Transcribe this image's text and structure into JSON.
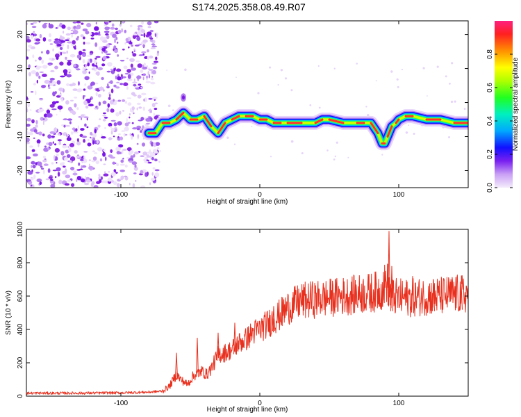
{
  "chart_data": [
    {
      "type": "heatmap",
      "title": "S174.2025.358.08.49.R07",
      "xlabel": "Height of straight line (km)",
      "ylabel": "Frequency (Hz)",
      "xlim": [
        -168,
        150
      ],
      "ylim": [
        -25,
        24
      ],
      "xticks": [
        -100,
        0,
        100
      ],
      "yticks": [
        -20,
        -10,
        0,
        10,
        20
      ],
      "colorbar": {
        "label": "Normalized spectral amplitude",
        "range": [
          0,
          1
        ],
        "ticks": [
          "0.0",
          "0.2",
          "0.4",
          "0.6",
          "0.8"
        ],
        "tick_values": [
          0.0,
          0.2,
          0.4,
          0.6,
          0.8
        ],
        "colors": [
          "#e8d8f8",
          "#b070f0",
          "#6a0df0",
          "#0000ff",
          "#00c0ff",
          "#00ffa0",
          "#40ff00",
          "#c0ff00",
          "#ffff00",
          "#ffa000",
          "#ff3030",
          "#ff2080"
        ]
      },
      "noise_region": {
        "x": [
          -168,
          -73
        ],
        "description_color": "#8a2be2"
      },
      "ridge": {
        "x": [
          -80,
          -75,
          -70,
          -65,
          -60,
          -55,
          -50,
          -45,
          -40,
          -35,
          -30,
          -25,
          -20,
          -15,
          -10,
          -5,
          0,
          5,
          10,
          15,
          20,
          30,
          40,
          45,
          50,
          60,
          70,
          75,
          80,
          85,
          88,
          90,
          92,
          95,
          98,
          100,
          105,
          110,
          120,
          130,
          140,
          150
        ],
        "y": [
          -9,
          -9,
          -6,
          -6,
          -5,
          -3,
          -5,
          -5,
          -4,
          -7,
          -9,
          -6,
          -5,
          -4,
          -4,
          -4,
          -5,
          -5,
          -6,
          -6,
          -6,
          -6,
          -6,
          -5,
          -5,
          -6,
          -6,
          -6,
          -6,
          -9,
          -12,
          -12,
          -10,
          -7,
          -6,
          -5,
          -4,
          -4,
          -5,
          -5,
          -6,
          -6
        ]
      },
      "spot": {
        "x": -55,
        "y": 1.5
      }
    },
    {
      "type": "line",
      "title": "",
      "xlabel": "Height of straight line (km)",
      "ylabel": "SNR (10 * v/v)",
      "xlim": [
        -168,
        150
      ],
      "ylim": [
        0,
        1000
      ],
      "xticks": [
        -100,
        0,
        100
      ],
      "yticks": [
        0,
        200,
        400,
        600,
        800,
        1000
      ],
      "color": "#e8301e",
      "series": [
        {
          "name": "SNR",
          "x": [
            -168,
            -130,
            -100,
            -80,
            -70,
            -65,
            -60,
            -57,
            -52,
            -48,
            -42,
            -38,
            -34,
            -30,
            -25,
            -20,
            -15,
            -10,
            -5,
            0,
            5,
            10,
            15,
            20,
            25,
            30,
            40,
            50,
            60,
            70,
            80,
            85,
            88,
            92,
            93,
            95,
            100,
            110,
            120,
            130,
            140,
            150
          ],
          "y": [
            18,
            18,
            20,
            24,
            30,
            60,
            130,
            100,
            70,
            120,
            150,
            130,
            180,
            250,
            260,
            280,
            320,
            340,
            380,
            400,
            430,
            460,
            490,
            530,
            550,
            570,
            580,
            590,
            600,
            610,
            620,
            630,
            640,
            700,
            640,
            600,
            590,
            590,
            600,
            600,
            610,
            610
          ]
        }
      ],
      "spikes": [
        {
          "x": -60,
          "y": 260
        },
        {
          "x": -45,
          "y": 350
        },
        {
          "x": -30,
          "y": 380
        },
        {
          "x": -18,
          "y": 440
        },
        {
          "x": 10,
          "y": 540
        },
        {
          "x": 80,
          "y": 680
        },
        {
          "x": 93,
          "y": 990
        },
        {
          "x": 95,
          "y": 780
        },
        {
          "x": 110,
          "y": 720
        },
        {
          "x": 125,
          "y": 700
        },
        {
          "x": 145,
          "y": 670
        }
      ]
    }
  ]
}
